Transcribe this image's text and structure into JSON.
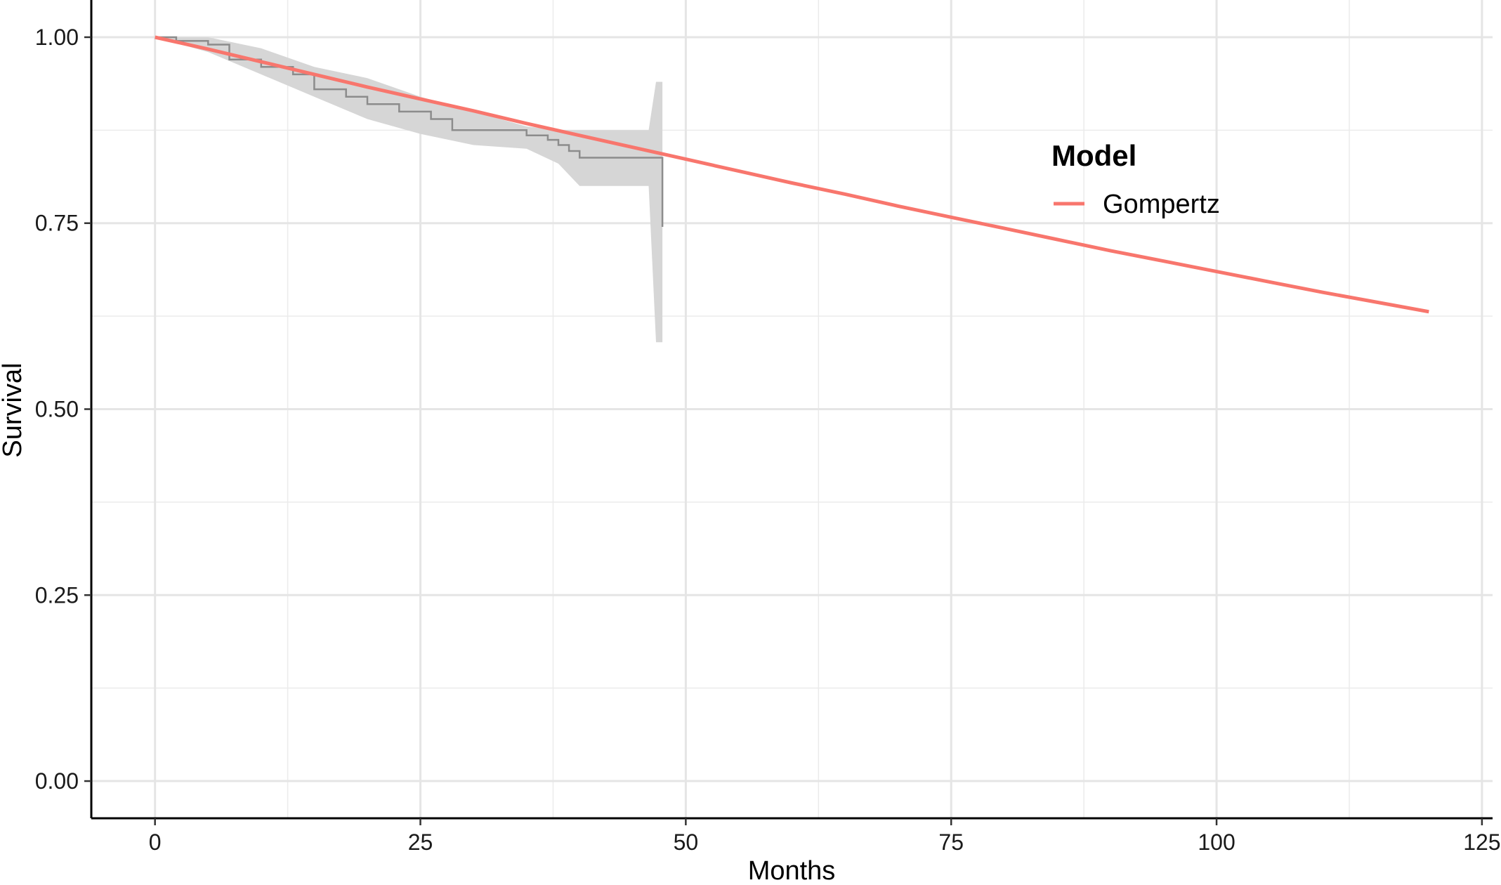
{
  "chart_data": {
    "type": "line",
    "xlabel": "Months",
    "ylabel": "Survival",
    "xlim": [
      -6,
      126
    ],
    "ylim": [
      -0.05,
      1.05
    ],
    "x_ticks": [
      0,
      25,
      50,
      75,
      100,
      125
    ],
    "x_tick_labels": [
      "0",
      "25",
      "50",
      "75",
      "100",
      "125"
    ],
    "y_ticks": [
      0.0,
      0.25,
      0.5,
      0.75,
      1.0
    ],
    "y_tick_labels": [
      "0.00",
      "0.25",
      "0.50",
      "0.75",
      "1.00"
    ],
    "grid": true,
    "legend": {
      "title": "Model",
      "position": "top-right",
      "entries": [
        {
          "label": "Gompertz",
          "color": "#F8766D"
        }
      ]
    },
    "series": [
      {
        "name": "Gompertz",
        "kind": "line",
        "color": "#F8766D",
        "x": [
          0,
          5,
          10,
          15,
          20,
          25,
          30,
          35,
          40,
          45,
          50,
          55,
          60,
          65,
          70,
          75,
          80,
          85,
          90,
          95,
          100,
          105,
          110,
          115,
          120
        ],
        "y": [
          1.0,
          0.984,
          0.967,
          0.95,
          0.933,
          0.917,
          0.901,
          0.884,
          0.868,
          0.852,
          0.836,
          0.82,
          0.804,
          0.789,
          0.773,
          0.758,
          0.743,
          0.728,
          0.713,
          0.699,
          0.685,
          0.671,
          0.657,
          0.644,
          0.631
        ]
      },
      {
        "kind": "step",
        "color": "#8c8c8c",
        "x": [
          0,
          2,
          5,
          7,
          10,
          13,
          15,
          18,
          20,
          23,
          26,
          28,
          30,
          34,
          35,
          37,
          38,
          39,
          40,
          47.2,
          47.8
        ],
        "y": [
          1.0,
          0.995,
          0.99,
          0.97,
          0.96,
          0.95,
          0.93,
          0.92,
          0.91,
          0.9,
          0.89,
          0.875,
          0.875,
          0.875,
          0.868,
          0.862,
          0.855,
          0.847,
          0.838,
          0.838,
          0.745
        ]
      },
      {
        "kind": "ribbon",
        "color": "#d6d6d6",
        "x": [
          0,
          5,
          10,
          15,
          20,
          25,
          30,
          35,
          38,
          40,
          46.5,
          47.2,
          47.8
        ],
        "lower": [
          1.0,
          0.98,
          0.95,
          0.92,
          0.89,
          0.87,
          0.855,
          0.85,
          0.83,
          0.8,
          0.8,
          0.59,
          0.59
        ],
        "upper": [
          1.0,
          1.0,
          0.985,
          0.96,
          0.945,
          0.92,
          0.9,
          0.88,
          0.875,
          0.875,
          0.875,
          0.94,
          0.94
        ]
      }
    ]
  }
}
